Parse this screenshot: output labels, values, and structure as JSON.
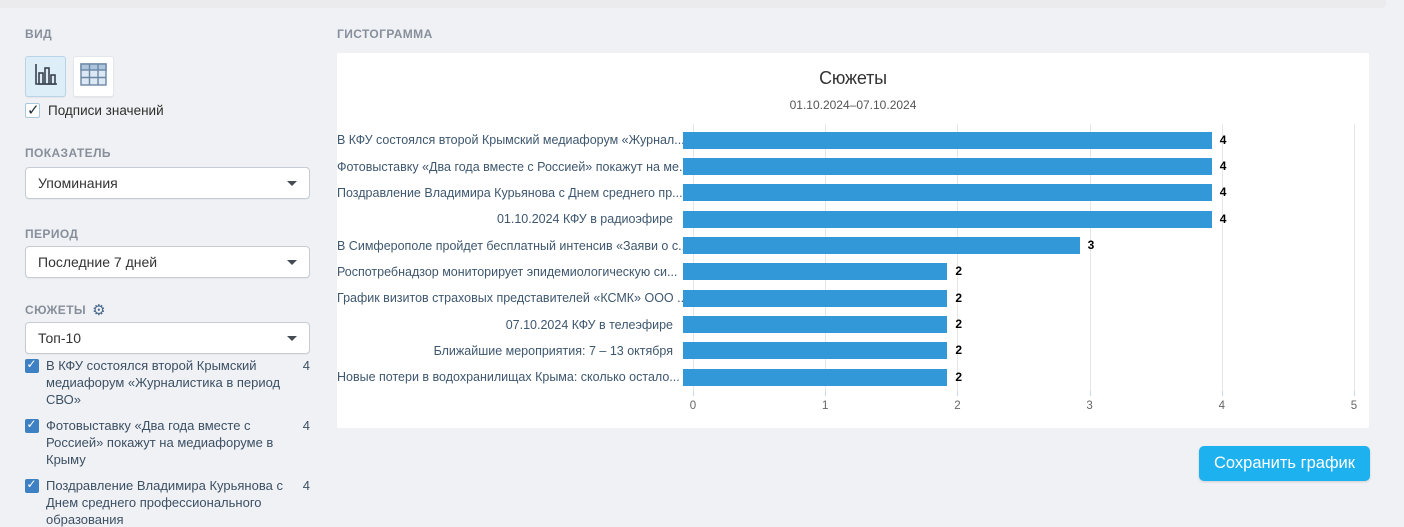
{
  "colors": {
    "bar": "#3398d8",
    "save_button": "#1db1f0",
    "list_checkbox": "#3e80c4",
    "grid": "#e6e6e6"
  },
  "sidebar": {
    "view_section": {
      "label": "ВИД",
      "values_checkbox_label": "Подписи значений",
      "values_checkbox_checked": true
    },
    "indicator_section": {
      "label": "ПОКАЗАТЕЛЬ",
      "selected": "Упоминания"
    },
    "period_section": {
      "label": "ПЕРИОД",
      "selected": "Последние 7 дней"
    },
    "subjects_section": {
      "label": "СЮЖЕТЫ",
      "selected": "Топ-10",
      "items": [
        {
          "label": "В КФУ состоялся второй Крымский медиафорум «Журналистика в период СВО»",
          "count": 4,
          "checked": true
        },
        {
          "label": "Фотовыставку «Два года вместе с Россией» покажут на медиафоруме в Крыму",
          "count": 4,
          "checked": true
        },
        {
          "label": "Поздравление Владимира Курьянова с Днем среднего профессионального образования",
          "count": 4,
          "checked": true
        }
      ]
    }
  },
  "main": {
    "section_label": "ГИСТОГРАММА",
    "save_button_label": "Сохранить график"
  },
  "chart_data": {
    "type": "bar",
    "orientation": "horizontal",
    "title": "Сюжеты",
    "subtitle": "01.10.2024–07.10.2024",
    "categories": [
      "В КФУ состоялся второй Крымский медиафорум «Журнал...",
      "Фотовыставку «Два года вместе с Россией» покажут на ме...",
      "Поздравление Владимира Курьянова с Днем среднего пр...",
      "01.10.2024 КФУ в радиоэфире",
      "В Симферополе пройдет бесплатный интенсив «Заяви о с...",
      "Роспотребнадзор мониторирует эпидемиологическую си...",
      "График визитов страховых представителей «КСМК» ООО ...",
      "07.10.2024 КФУ в телеэфире",
      "Ближайшие мероприятия: 7 – 13 октября",
      "Новые потери в водохранилищах Крыма: сколько остало..."
    ],
    "values": [
      4,
      4,
      4,
      4,
      3,
      2,
      2,
      2,
      2,
      2
    ],
    "value_labels_shown": true,
    "xlim": [
      0,
      5
    ],
    "xticks": [
      "0",
      "1",
      "2",
      "3",
      "4",
      "5"
    ],
    "grid": "vertical",
    "legend": "none"
  }
}
